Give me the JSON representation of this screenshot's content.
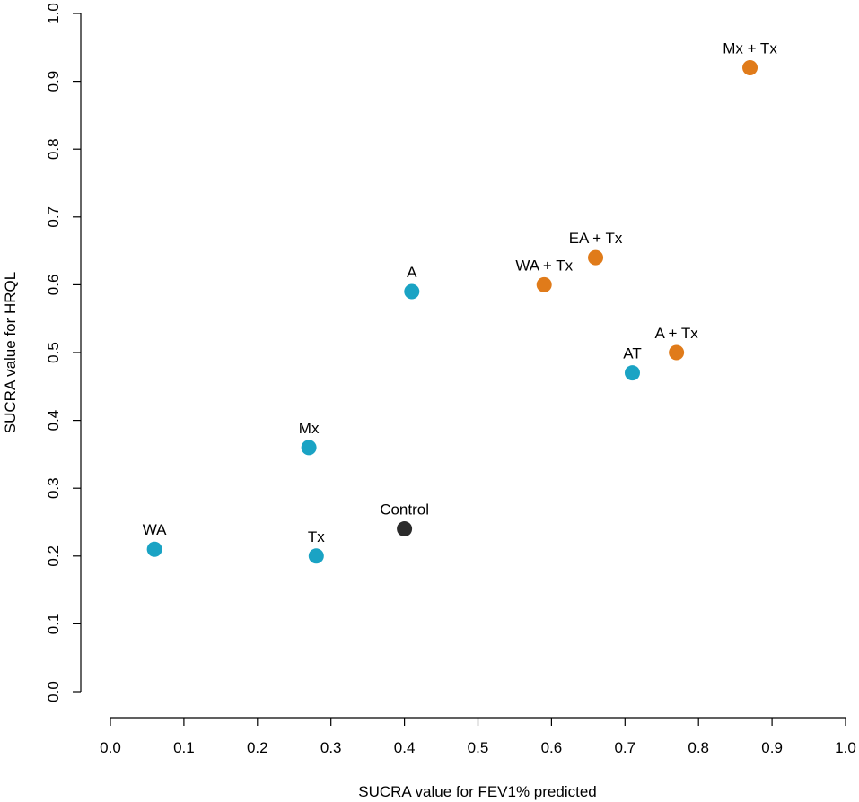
{
  "chart_data": {
    "type": "scatter",
    "title": "",
    "xlabel": "SUCRA value for FEV1% predicted",
    "ylabel": "SUCRA value for HRQL",
    "xlim": [
      0.0,
      1.0
    ],
    "ylim": [
      0.0,
      1.0
    ],
    "xticks": [
      "0.0",
      "0.1",
      "0.2",
      "0.3",
      "0.4",
      "0.5",
      "0.6",
      "0.7",
      "0.8",
      "0.9",
      "1.0"
    ],
    "yticks": [
      "0.0",
      "0.1",
      "0.2",
      "0.3",
      "0.4",
      "0.5",
      "0.6",
      "0.7",
      "0.8",
      "0.9",
      "1.0"
    ],
    "grid": false,
    "colors": {
      "single": "#1aa3c4",
      "combination": "#e07b1a",
      "control": "#2b2b2b"
    },
    "points": [
      {
        "label": "WA",
        "x": 0.06,
        "y": 0.21,
        "group": "single"
      },
      {
        "label": "Tx",
        "x": 0.28,
        "y": 0.2,
        "group": "single"
      },
      {
        "label": "Mx",
        "x": 0.27,
        "y": 0.36,
        "group": "single"
      },
      {
        "label": "A",
        "x": 0.41,
        "y": 0.59,
        "group": "single"
      },
      {
        "label": "AT",
        "x": 0.71,
        "y": 0.47,
        "group": "single"
      },
      {
        "label": "Control",
        "x": 0.4,
        "y": 0.24,
        "group": "control"
      },
      {
        "label": "WA + Tx",
        "x": 0.59,
        "y": 0.6,
        "group": "combination"
      },
      {
        "label": "EA + Tx",
        "x": 0.66,
        "y": 0.64,
        "group": "combination"
      },
      {
        "label": "A + Tx",
        "x": 0.77,
        "y": 0.5,
        "group": "combination"
      },
      {
        "label": "Mx + Tx",
        "x": 0.87,
        "y": 0.92,
        "group": "combination"
      }
    ]
  }
}
